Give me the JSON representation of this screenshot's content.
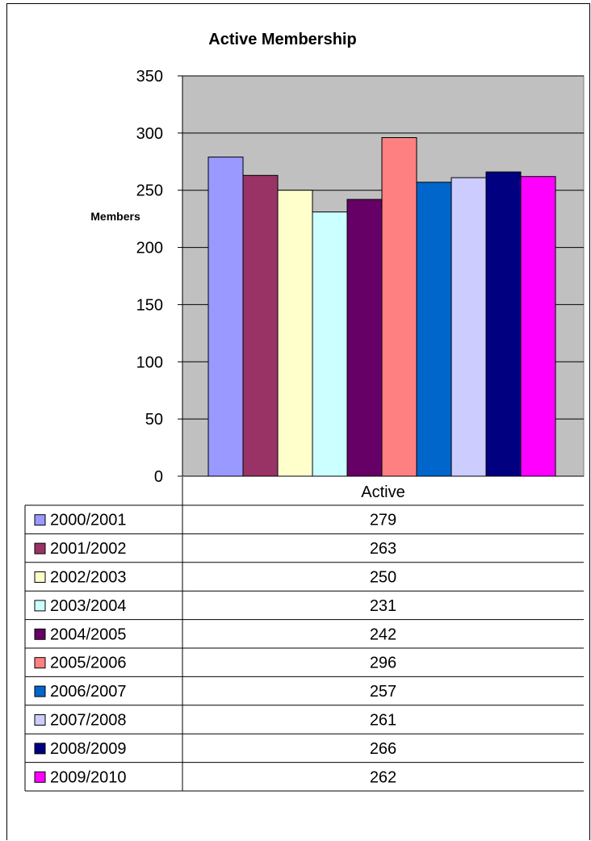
{
  "chart_data": {
    "type": "bar",
    "title": "Active Membership",
    "ylabel": "Members",
    "xlabel": "",
    "categories": [
      "Active"
    ],
    "ylim": [
      0,
      350
    ],
    "yticks": [
      0,
      50,
      100,
      150,
      200,
      250,
      300,
      350
    ],
    "grid": true,
    "legend": "data-table-below",
    "series": [
      {
        "name": "2000/2001",
        "values": [
          279
        ],
        "color": "#9999FF"
      },
      {
        "name": "2001/2002",
        "values": [
          263
        ],
        "color": "#993366"
      },
      {
        "name": "2002/2003",
        "values": [
          250
        ],
        "color": "#FFFFCC"
      },
      {
        "name": "2003/2004",
        "values": [
          231
        ],
        "color": "#CCFFFF"
      },
      {
        "name": "2004/2005",
        "values": [
          242
        ],
        "color": "#660066"
      },
      {
        "name": "2005/2006",
        "values": [
          296
        ],
        "color": "#FF8080"
      },
      {
        "name": "2006/2007",
        "values": [
          257
        ],
        "color": "#0066CC"
      },
      {
        "name": "2007/2008",
        "values": [
          261
        ],
        "color": "#CCCCFF"
      },
      {
        "name": "2008/2009",
        "values": [
          266
        ],
        "color": "#000080"
      },
      {
        "name": "2009/2010",
        "values": [
          262
        ],
        "color": "#FF00FF"
      }
    ],
    "plot_background": "#C0C0C0"
  }
}
